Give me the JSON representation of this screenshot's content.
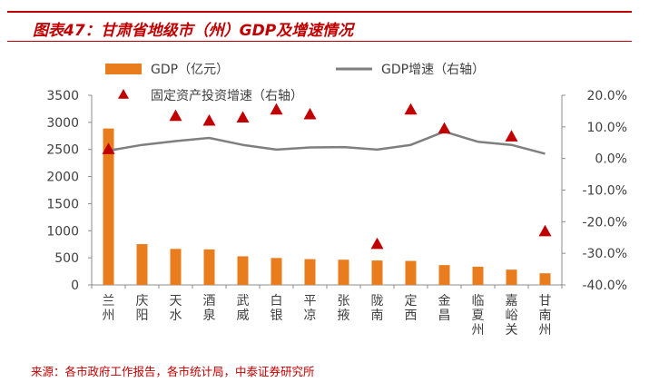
{
  "header": {
    "title": "图表47：甘肃省地级市（州）GDP及增速情况"
  },
  "footer": {
    "source": "来源：各市政府工作报告，各市统计局，中泰证券研究所"
  },
  "colors": {
    "bar": "#e97d1e",
    "line": "#7f7f7f",
    "marker": "#c00000",
    "accent": "#c00000"
  },
  "chart_data": {
    "type": "bar",
    "title": "甘肃省地级市（州）GDP及增速情况",
    "categories": [
      "兰州",
      "庆阳",
      "天水",
      "酒泉",
      "武威",
      "白银",
      "平凉",
      "张掖",
      "陇南",
      "定西",
      "金昌",
      "临夏州",
      "嘉峪关",
      "甘南州"
    ],
    "category_labels": [
      [
        "兰",
        "州"
      ],
      [
        "庆",
        "阳"
      ],
      [
        "天",
        "水"
      ],
      [
        "酒",
        "泉"
      ],
      [
        "武",
        "威"
      ],
      [
        "白",
        "银"
      ],
      [
        "平",
        "凉"
      ],
      [
        "张",
        "掖"
      ],
      [
        "陇",
        "南"
      ],
      [
        "定",
        "西"
      ],
      [
        "金",
        "昌"
      ],
      [
        "临",
        "夏",
        "州"
      ],
      [
        "嘉",
        "峪",
        "关"
      ],
      [
        "甘",
        "南",
        "州"
      ]
    ],
    "series": [
      {
        "name": "GDP（亿元）",
        "type": "bar",
        "axis": "left",
        "values": [
          2887,
          753,
          665,
          655,
          528,
          497,
          476,
          465,
          451,
          443,
          366,
          336,
          282,
          215
        ]
      },
      {
        "name": "GDP增速（右轴）",
        "type": "line",
        "axis": "right",
        "values": [
          2.5,
          4.3,
          5.5,
          6.5,
          4.3,
          2.8,
          3.5,
          3.6,
          2.8,
          4.3,
          8.5,
          5.3,
          4.3,
          1.5
        ]
      },
      {
        "name": "固定资产投资增速（右轴）",
        "type": "scatter",
        "axis": "right",
        "values": [
          3.0,
          null,
          13.5,
          12.0,
          13.0,
          15.5,
          14.0,
          null,
          -27.0,
          15.5,
          9.5,
          null,
          7.0,
          -23.0
        ]
      }
    ],
    "y_left": {
      "min": 0,
      "max": 3500,
      "step": 500,
      "ticks": [
        "0",
        "500",
        "1000",
        "1500",
        "2000",
        "2500",
        "3000",
        "3500"
      ]
    },
    "y_right": {
      "min": -40,
      "max": 20,
      "step": 10,
      "ticks": [
        "-40.0%",
        "-30.0%",
        "-20.0%",
        "-10.0%",
        "0.0%",
        "10.0%",
        "20.0%"
      ]
    },
    "legend": [
      "GDP（亿元）",
      "GDP增速（右轴）",
      "固定资产投资增速（右轴）"
    ],
    "legend_position": "top",
    "grid": false
  }
}
